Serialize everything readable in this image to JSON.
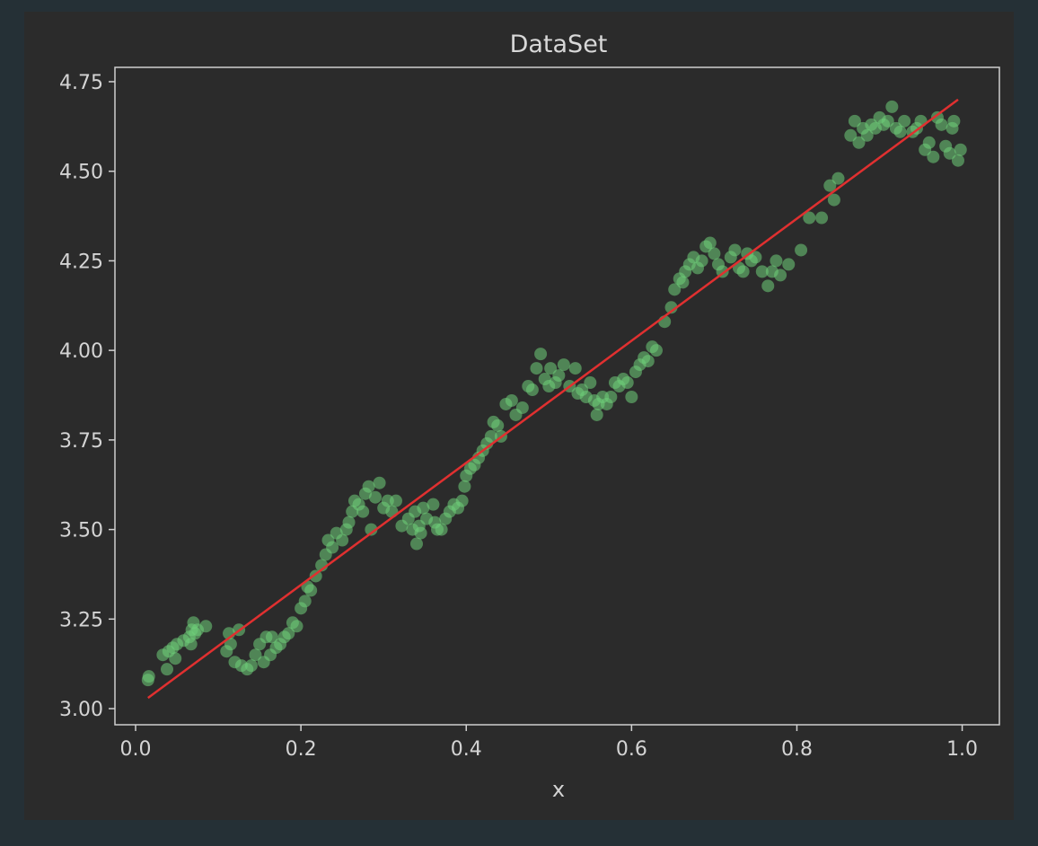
{
  "chart_data": {
    "type": "scatter",
    "title": "DataSet",
    "xlabel": "x",
    "ylabel": "",
    "xlim": [
      -0.025,
      1.045
    ],
    "ylim": [
      2.955,
      4.79
    ],
    "xticks": [
      0.0,
      0.2,
      0.4,
      0.6,
      0.8,
      1.0
    ],
    "xtick_labels": [
      "0.0",
      "0.2",
      "0.4",
      "0.6",
      "0.8",
      "1.0"
    ],
    "yticks": [
      3.0,
      3.25,
      3.5,
      3.75,
      4.0,
      4.25,
      4.5,
      4.75
    ],
    "ytick_labels": [
      "3.00",
      "3.25",
      "3.50",
      "3.75",
      "4.00",
      "4.25",
      "4.50",
      "4.75"
    ],
    "grid": false,
    "legend": "none",
    "colors": {
      "points": "#6fd07a",
      "fit_line": "#e03030",
      "axes": "#d0d0d0",
      "plot_bg": "#2b2b2b",
      "page_bg": "#253036"
    },
    "series": [
      {
        "kind": "scatter",
        "points": [
          [
            0.015,
            3.08
          ],
          [
            0.016,
            3.09
          ],
          [
            0.033,
            3.15
          ],
          [
            0.038,
            3.11
          ],
          [
            0.04,
            3.16
          ],
          [
            0.045,
            3.17
          ],
          [
            0.048,
            3.14
          ],
          [
            0.05,
            3.18
          ],
          [
            0.058,
            3.19
          ],
          [
            0.065,
            3.2
          ],
          [
            0.067,
            3.18
          ],
          [
            0.068,
            3.22
          ],
          [
            0.07,
            3.24
          ],
          [
            0.072,
            3.21
          ],
          [
            0.075,
            3.22
          ],
          [
            0.085,
            3.23
          ],
          [
            0.11,
            3.16
          ],
          [
            0.113,
            3.21
          ],
          [
            0.115,
            3.18
          ],
          [
            0.12,
            3.13
          ],
          [
            0.125,
            3.22
          ],
          [
            0.128,
            3.12
          ],
          [
            0.135,
            3.11
          ],
          [
            0.14,
            3.12
          ],
          [
            0.145,
            3.15
          ],
          [
            0.15,
            3.18
          ],
          [
            0.155,
            3.13
          ],
          [
            0.158,
            3.2
          ],
          [
            0.163,
            3.15
          ],
          [
            0.165,
            3.2
          ],
          [
            0.17,
            3.17
          ],
          [
            0.175,
            3.18
          ],
          [
            0.18,
            3.2
          ],
          [
            0.185,
            3.21
          ],
          [
            0.19,
            3.24
          ],
          [
            0.195,
            3.23
          ],
          [
            0.2,
            3.28
          ],
          [
            0.205,
            3.3
          ],
          [
            0.208,
            3.34
          ],
          [
            0.212,
            3.33
          ],
          [
            0.218,
            3.37
          ],
          [
            0.225,
            3.4
          ],
          [
            0.23,
            3.43
          ],
          [
            0.233,
            3.47
          ],
          [
            0.238,
            3.45
          ],
          [
            0.243,
            3.49
          ],
          [
            0.25,
            3.47
          ],
          [
            0.255,
            3.5
          ],
          [
            0.258,
            3.52
          ],
          [
            0.262,
            3.55
          ],
          [
            0.265,
            3.58
          ],
          [
            0.27,
            3.57
          ],
          [
            0.275,
            3.55
          ],
          [
            0.278,
            3.6
          ],
          [
            0.282,
            3.62
          ],
          [
            0.285,
            3.5
          ],
          [
            0.29,
            3.59
          ],
          [
            0.295,
            3.63
          ],
          [
            0.3,
            3.56
          ],
          [
            0.305,
            3.58
          ],
          [
            0.31,
            3.55
          ],
          [
            0.315,
            3.58
          ],
          [
            0.322,
            3.51
          ],
          [
            0.33,
            3.53
          ],
          [
            0.335,
            3.5
          ],
          [
            0.338,
            3.55
          ],
          [
            0.34,
            3.46
          ],
          [
            0.343,
            3.51
          ],
          [
            0.345,
            3.49
          ],
          [
            0.348,
            3.56
          ],
          [
            0.352,
            3.53
          ],
          [
            0.36,
            3.57
          ],
          [
            0.362,
            3.52
          ],
          [
            0.365,
            3.5
          ],
          [
            0.37,
            3.5
          ],
          [
            0.375,
            3.53
          ],
          [
            0.38,
            3.55
          ],
          [
            0.385,
            3.57
          ],
          [
            0.39,
            3.56
          ],
          [
            0.395,
            3.58
          ],
          [
            0.398,
            3.62
          ],
          [
            0.4,
            3.65
          ],
          [
            0.405,
            3.67
          ],
          [
            0.41,
            3.68
          ],
          [
            0.415,
            3.7
          ],
          [
            0.42,
            3.72
          ],
          [
            0.425,
            3.74
          ],
          [
            0.43,
            3.76
          ],
          [
            0.433,
            3.8
          ],
          [
            0.438,
            3.79
          ],
          [
            0.442,
            3.76
          ],
          [
            0.448,
            3.85
          ],
          [
            0.455,
            3.86
          ],
          [
            0.46,
            3.82
          ],
          [
            0.468,
            3.84
          ],
          [
            0.475,
            3.9
          ],
          [
            0.48,
            3.89
          ],
          [
            0.485,
            3.95
          ],
          [
            0.49,
            3.99
          ],
          [
            0.495,
            3.92
          ],
          [
            0.5,
            3.9
          ],
          [
            0.502,
            3.95
          ],
          [
            0.508,
            3.91
          ],
          [
            0.512,
            3.93
          ],
          [
            0.518,
            3.96
          ],
          [
            0.525,
            3.9
          ],
          [
            0.532,
            3.95
          ],
          [
            0.535,
            3.88
          ],
          [
            0.54,
            3.89
          ],
          [
            0.545,
            3.87
          ],
          [
            0.55,
            3.91
          ],
          [
            0.555,
            3.86
          ],
          [
            0.558,
            3.82
          ],
          [
            0.56,
            3.85
          ],
          [
            0.565,
            3.87
          ],
          [
            0.57,
            3.85
          ],
          [
            0.575,
            3.87
          ],
          [
            0.58,
            3.91
          ],
          [
            0.585,
            3.9
          ],
          [
            0.59,
            3.92
          ],
          [
            0.595,
            3.91
          ],
          [
            0.6,
            3.87
          ],
          [
            0.605,
            3.94
          ],
          [
            0.61,
            3.96
          ],
          [
            0.615,
            3.98
          ],
          [
            0.62,
            3.97
          ],
          [
            0.625,
            4.01
          ],
          [
            0.63,
            4.0
          ],
          [
            0.64,
            4.08
          ],
          [
            0.648,
            4.12
          ],
          [
            0.652,
            4.17
          ],
          [
            0.658,
            4.2
          ],
          [
            0.662,
            4.19
          ],
          [
            0.665,
            4.22
          ],
          [
            0.67,
            4.24
          ],
          [
            0.675,
            4.26
          ],
          [
            0.68,
            4.23
          ],
          [
            0.685,
            4.25
          ],
          [
            0.69,
            4.29
          ],
          [
            0.695,
            4.3
          ],
          [
            0.7,
            4.27
          ],
          [
            0.705,
            4.24
          ],
          [
            0.71,
            4.22
          ],
          [
            0.72,
            4.26
          ],
          [
            0.725,
            4.28
          ],
          [
            0.73,
            4.23
          ],
          [
            0.735,
            4.22
          ],
          [
            0.74,
            4.27
          ],
          [
            0.745,
            4.25
          ],
          [
            0.75,
            4.26
          ],
          [
            0.758,
            4.22
          ],
          [
            0.765,
            4.18
          ],
          [
            0.77,
            4.22
          ],
          [
            0.775,
            4.25
          ],
          [
            0.78,
            4.21
          ],
          [
            0.79,
            4.24
          ],
          [
            0.805,
            4.28
          ],
          [
            0.815,
            4.37
          ],
          [
            0.83,
            4.37
          ],
          [
            0.84,
            4.46
          ],
          [
            0.845,
            4.42
          ],
          [
            0.85,
            4.48
          ],
          [
            0.865,
            4.6
          ],
          [
            0.87,
            4.64
          ],
          [
            0.875,
            4.58
          ],
          [
            0.88,
            4.62
          ],
          [
            0.885,
            4.6
          ],
          [
            0.89,
            4.63
          ],
          [
            0.895,
            4.62
          ],
          [
            0.9,
            4.65
          ],
          [
            0.905,
            4.63
          ],
          [
            0.91,
            4.64
          ],
          [
            0.915,
            4.68
          ],
          [
            0.92,
            4.62
          ],
          [
            0.925,
            4.61
          ],
          [
            0.93,
            4.64
          ],
          [
            0.94,
            4.61
          ],
          [
            0.945,
            4.62
          ],
          [
            0.95,
            4.64
          ],
          [
            0.955,
            4.56
          ],
          [
            0.96,
            4.58
          ],
          [
            0.965,
            4.54
          ],
          [
            0.97,
            4.65
          ],
          [
            0.975,
            4.63
          ],
          [
            0.98,
            4.57
          ],
          [
            0.985,
            4.55
          ],
          [
            0.988,
            4.62
          ],
          [
            0.99,
            4.64
          ],
          [
            0.995,
            4.53
          ],
          [
            0.998,
            4.56
          ]
        ]
      },
      {
        "kind": "line",
        "points": [
          [
            0.015,
            3.03
          ],
          [
            0.995,
            4.7
          ]
        ]
      }
    ]
  }
}
